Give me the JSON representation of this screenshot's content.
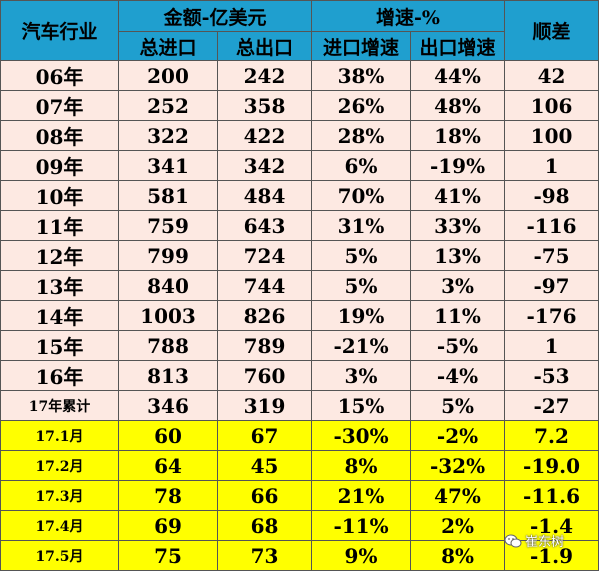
{
  "table": {
    "header": {
      "industry": "汽车行业",
      "amount_group": "金额-亿美元",
      "growth_group": "增速-%",
      "balance": "顺差",
      "import_total": "总进口",
      "export_total": "总出口",
      "import_growth": "进口增速",
      "export_growth": "出口增速"
    },
    "annual_rows": [
      {
        "period": "06年",
        "imports": "200",
        "exports": "242",
        "import_growth": "38%",
        "export_growth": "44%",
        "balance": "42"
      },
      {
        "period": "07年",
        "imports": "252",
        "exports": "358",
        "import_growth": "26%",
        "export_growth": "48%",
        "balance": "106"
      },
      {
        "period": "08年",
        "imports": "322",
        "exports": "422",
        "import_growth": "28%",
        "export_growth": "18%",
        "balance": "100"
      },
      {
        "period": "09年",
        "imports": "341",
        "exports": "342",
        "import_growth": "6%",
        "export_growth": "-19%",
        "balance": "1"
      },
      {
        "period": "10年",
        "imports": "581",
        "exports": "484",
        "import_growth": "70%",
        "export_growth": "41%",
        "balance": "-98"
      },
      {
        "period": "11年",
        "imports": "759",
        "exports": "643",
        "import_growth": "31%",
        "export_growth": "33%",
        "balance": "-116"
      },
      {
        "period": "12年",
        "imports": "799",
        "exports": "724",
        "import_growth": "5%",
        "export_growth": "13%",
        "balance": "-75"
      },
      {
        "period": "13年",
        "imports": "840",
        "exports": "744",
        "import_growth": "5%",
        "export_growth": "3%",
        "balance": "-97"
      },
      {
        "period": "14年",
        "imports": "1003",
        "exports": "826",
        "import_growth": "19%",
        "export_growth": "11%",
        "balance": "-176"
      },
      {
        "period": "15年",
        "imports": "788",
        "exports": "789",
        "import_growth": "-21%",
        "export_growth": "-5%",
        "balance": "1"
      },
      {
        "period": "16年",
        "imports": "813",
        "exports": "760",
        "import_growth": "3%",
        "export_growth": "-4%",
        "balance": "-53"
      },
      {
        "period": "17年累计",
        "imports": "346",
        "exports": "319",
        "import_growth": "15%",
        "export_growth": "5%",
        "balance": "-27",
        "small": true
      }
    ],
    "monthly_rows": [
      {
        "period": "17.1月",
        "imports": "60",
        "exports": "67",
        "import_growth": "-30%",
        "export_growth": "-2%",
        "balance": "7.2"
      },
      {
        "period": "17.2月",
        "imports": "64",
        "exports": "45",
        "import_growth": "8%",
        "export_growth": "-32%",
        "balance": "-19.0"
      },
      {
        "period": "17.3月",
        "imports": "78",
        "exports": "66",
        "import_growth": "21%",
        "export_growth": "47%",
        "balance": "-11.6"
      },
      {
        "period": "17.4月",
        "imports": "69",
        "exports": "68",
        "import_growth": "-11%",
        "export_growth": "2%",
        "balance": "-1.4"
      },
      {
        "period": "17.5月",
        "imports": "75",
        "exports": "73",
        "import_growth": "9%",
        "export_growth": "8%",
        "balance": "-1.9"
      }
    ]
  },
  "watermark": {
    "text": "崔东树",
    "icon": "wechat-icon"
  },
  "colors": {
    "header": "#1f9fcf",
    "annual": "#fde9e2",
    "monthly": "#ffff00"
  }
}
